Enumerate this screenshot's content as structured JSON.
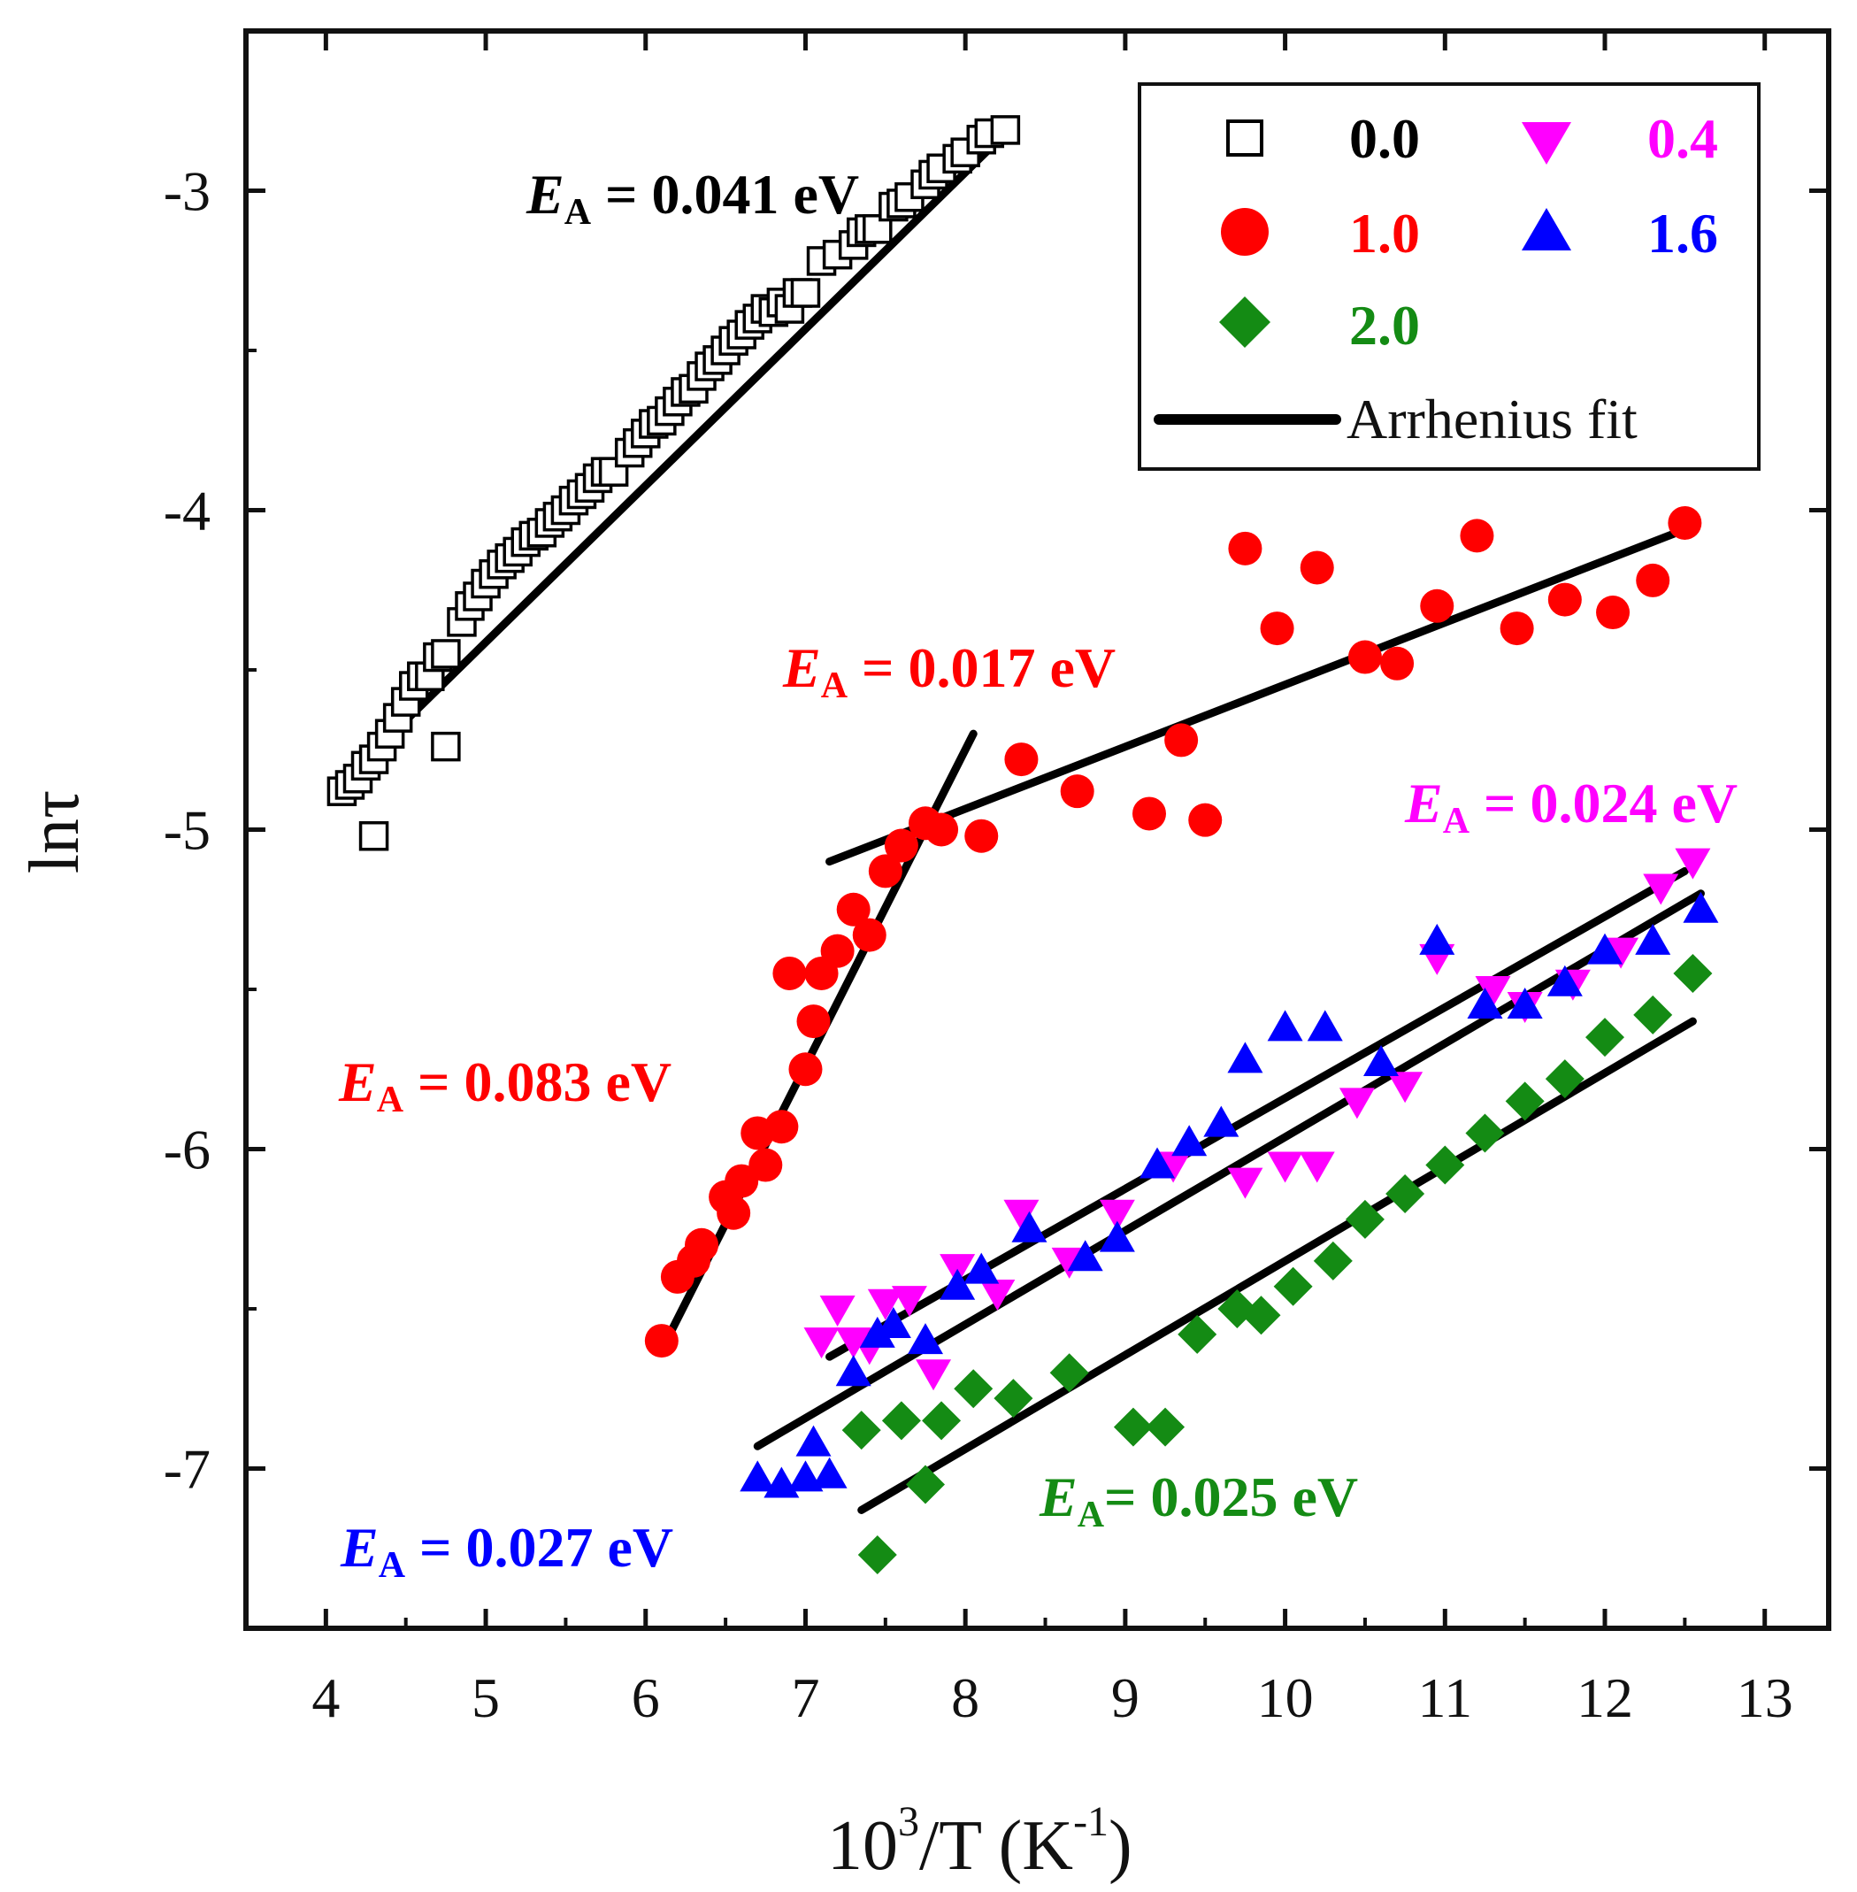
{
  "chart_data": {
    "type": "scatter",
    "xlabel": "10³/T (K⁻¹)",
    "xlabel_base": "10",
    "xlabel_exp": "3",
    "xlabel_mid": "/T  (K",
    "xlabel_unit_exp": "-1",
    "xlabel_end": ")",
    "ylabel": "lnτ",
    "xlim": [
      3.5,
      13.4
    ],
    "ylim": [
      -7.5,
      -2.5
    ],
    "xticks": [
      4,
      5,
      6,
      7,
      8,
      9,
      10,
      11,
      12,
      13
    ],
    "yticks": [
      -3,
      -4,
      -5,
      -6,
      -7
    ],
    "ytick_labels": [
      "-3",
      "-4",
      "-5",
      "-6",
      "-7"
    ],
    "grid": false,
    "legend_position": "top-right",
    "series": [
      {
        "name": "0.0",
        "color": "#000000",
        "marker": "square-open",
        "x": [
          4.1,
          4.15,
          4.2,
          4.25,
          4.3,
          4.35,
          4.4,
          4.45,
          4.5,
          4.55,
          4.6,
          4.65,
          4.7,
          4.75,
          4.85,
          4.9,
          4.95,
          5.0,
          5.05,
          5.1,
          5.15,
          5.2,
          5.25,
          5.3,
          5.35,
          5.4,
          5.45,
          5.5,
          5.55,
          5.6,
          5.65,
          5.7,
          5.75,
          5.8,
          5.9,
          5.95,
          6.0,
          6.05,
          6.1,
          6.15,
          6.2,
          6.25,
          6.3,
          6.35,
          6.4,
          6.45,
          6.5,
          6.55,
          6.6,
          6.65,
          6.7,
          6.75,
          6.8,
          6.85,
          6.9,
          6.95,
          7.0,
          7.1,
          7.2,
          7.3,
          7.35,
          7.4,
          7.45,
          7.55,
          7.6,
          7.65,
          7.75,
          7.8,
          7.85,
          7.95,
          8.0,
          8.1,
          8.15,
          8.25,
          4.3,
          4.75
        ],
        "values": [
          -4.88,
          -4.86,
          -4.84,
          -4.8,
          -4.78,
          -4.74,
          -4.7,
          -4.65,
          -4.6,
          -4.55,
          -4.52,
          -4.52,
          -4.46,
          -4.45,
          -4.35,
          -4.3,
          -4.27,
          -4.23,
          -4.2,
          -4.17,
          -4.15,
          -4.13,
          -4.1,
          -4.08,
          -4.07,
          -4.04,
          -4.02,
          -4.0,
          -3.97,
          -3.95,
          -3.93,
          -3.9,
          -3.88,
          -3.88,
          -3.82,
          -3.79,
          -3.76,
          -3.73,
          -3.72,
          -3.69,
          -3.66,
          -3.63,
          -3.62,
          -3.58,
          -3.55,
          -3.53,
          -3.5,
          -3.47,
          -3.45,
          -3.42,
          -3.4,
          -3.37,
          -3.38,
          -3.35,
          -3.37,
          -3.32,
          -3.32,
          -3.22,
          -3.2,
          -3.17,
          -3.13,
          -3.12,
          -3.12,
          -3.05,
          -3.04,
          -3.02,
          -2.98,
          -2.95,
          -2.93,
          -2.9,
          -2.88,
          -2.84,
          -2.82,
          -2.81,
          -5.02,
          -4.74
        ]
      },
      {
        "name": "1.0",
        "color": "#ff0000",
        "marker": "circle",
        "x": [
          6.1,
          6.2,
          6.3,
          6.35,
          6.5,
          6.55,
          6.6,
          6.7,
          6.75,
          6.85,
          6.9,
          7.0,
          7.05,
          7.1,
          7.2,
          7.3,
          7.4,
          7.5,
          7.6,
          7.75,
          7.85,
          8.1,
          8.35,
          8.7,
          9.15,
          9.35,
          9.5,
          9.75,
          9.95,
          10.2,
          10.5,
          10.7,
          10.95,
          11.2,
          11.45,
          11.75,
          12.05,
          12.3,
          12.5
        ],
        "values": [
          -6.6,
          -6.4,
          -6.35,
          -6.3,
          -6.15,
          -6.2,
          -6.1,
          -5.95,
          -6.05,
          -5.93,
          -5.45,
          -5.75,
          -5.6,
          -5.45,
          -5.38,
          -5.25,
          -5.33,
          -5.13,
          -5.05,
          -4.98,
          -5.0,
          -5.02,
          -4.78,
          -4.88,
          -4.95,
          -4.72,
          -4.97,
          -4.12,
          -4.37,
          -4.18,
          -4.46,
          -4.48,
          -4.3,
          -4.08,
          -4.37,
          -4.28,
          -4.32,
          -4.22,
          -4.04
        ]
      },
      {
        "name": "0.4",
        "color": "#ff00ff",
        "marker": "triangle-down",
        "x": [
          7.1,
          7.2,
          7.3,
          7.4,
          7.5,
          7.65,
          7.8,
          7.95,
          8.2,
          8.35,
          8.65,
          8.95,
          9.3,
          9.75,
          10.0,
          10.2,
          10.45,
          10.75,
          10.95,
          11.3,
          11.5,
          11.8,
          12.1,
          12.35,
          12.55
        ],
        "values": [
          -6.6,
          -6.5,
          -6.6,
          -6.62,
          -6.48,
          -6.47,
          -6.7,
          -6.37,
          -6.45,
          -6.2,
          -6.35,
          -6.2,
          -6.05,
          -6.1,
          -6.05,
          -6.05,
          -5.85,
          -5.8,
          -5.4,
          -5.5,
          -5.55,
          -5.48,
          -5.38,
          -5.18,
          -5.1
        ]
      },
      {
        "name": "1.6",
        "color": "#0000ff",
        "marker": "triangle-up",
        "x": [
          6.7,
          6.85,
          7.0,
          7.05,
          7.15,
          7.3,
          7.45,
          7.55,
          7.75,
          7.95,
          8.1,
          8.4,
          8.75,
          8.95,
          9.2,
          9.4,
          9.6,
          9.75,
          10.0,
          10.25,
          10.6,
          10.95,
          11.25,
          11.5,
          11.75,
          12.0,
          12.3,
          12.6
        ],
        "values": [
          -7.03,
          -7.05,
          -7.03,
          -6.92,
          -7.02,
          -6.7,
          -6.58,
          -6.55,
          -6.6,
          -6.43,
          -6.38,
          -6.25,
          -6.34,
          -6.28,
          -6.05,
          -5.98,
          -5.92,
          -5.72,
          -5.62,
          -5.62,
          -5.73,
          -5.35,
          -5.55,
          -5.55,
          -5.48,
          -5.38,
          -5.35,
          -5.25
        ]
      },
      {
        "name": "2.0",
        "color": "#148b14",
        "marker": "diamond",
        "x": [
          7.35,
          7.45,
          7.6,
          7.75,
          7.85,
          8.05,
          8.3,
          8.65,
          9.05,
          9.25,
          9.45,
          9.7,
          9.85,
          10.05,
          10.3,
          10.5,
          10.75,
          11.0,
          11.25,
          11.5,
          11.75,
          12.0,
          12.3,
          12.55
        ],
        "values": [
          -6.88,
          -7.27,
          -6.85,
          -7.05,
          -6.85,
          -6.75,
          -6.78,
          -6.7,
          -6.87,
          -6.87,
          -6.58,
          -6.5,
          -6.52,
          -6.43,
          -6.35,
          -6.22,
          -6.14,
          -6.05,
          -5.95,
          -5.85,
          -5.78,
          -5.65,
          -5.58,
          -5.45
        ]
      }
    ],
    "fits": [
      {
        "series": "0.0",
        "x": [
          4.15,
          8.25
        ],
        "values": [
          -4.83,
          -2.82
        ]
      },
      {
        "series": "1.0 (high T)",
        "x": [
          6.15,
          8.05
        ],
        "values": [
          -6.58,
          -4.7
        ]
      },
      {
        "series": "1.0 (low T)",
        "x": [
          7.15,
          12.45
        ],
        "values": [
          -5.1,
          -4.07
        ]
      },
      {
        "series": "0.4",
        "x": [
          7.15,
          12.5
        ],
        "values": [
          -6.65,
          -5.13
        ]
      },
      {
        "series": "1.6",
        "x": [
          6.7,
          12.6
        ],
        "values": [
          -6.93,
          -5.2
        ]
      },
      {
        "series": "2.0",
        "x": [
          7.35,
          12.55
        ],
        "values": [
          -7.13,
          -5.6
        ]
      }
    ],
    "annotations": [
      {
        "base": "E",
        "sub": "A",
        "text": " = 0.041 eV",
        "color": "#000000"
      },
      {
        "base": "E",
        "sub": "A",
        "text": " = 0.017 eV",
        "color": "#ff0000"
      },
      {
        "base": "E",
        "sub": "A",
        "text": " = 0.083 eV",
        "color": "#ff0000"
      },
      {
        "base": "E",
        "sub": "A",
        "text": " = 0.024 eV",
        "color": "#ff00ff"
      },
      {
        "base": "E",
        "sub": "A",
        "text": " = 0.027 eV",
        "color": "#0000ff"
      },
      {
        "base": "E",
        "sub": "A",
        "text": "= 0.025 eV",
        "color": "#148b14"
      }
    ],
    "legend": {
      "items": [
        {
          "label": "0.0",
          "color": "#000000",
          "marker": "square-open"
        },
        {
          "label": "0.4",
          "color": "#ff00ff",
          "marker": "triangle-down"
        },
        {
          "label": "1.0",
          "color": "#ff0000",
          "marker": "circle"
        },
        {
          "label": "1.6",
          "color": "#0000ff",
          "marker": "triangle-up"
        },
        {
          "label": "2.0",
          "color": "#148b14",
          "marker": "diamond"
        }
      ],
      "fit_label": "Arrhenius fit"
    }
  }
}
